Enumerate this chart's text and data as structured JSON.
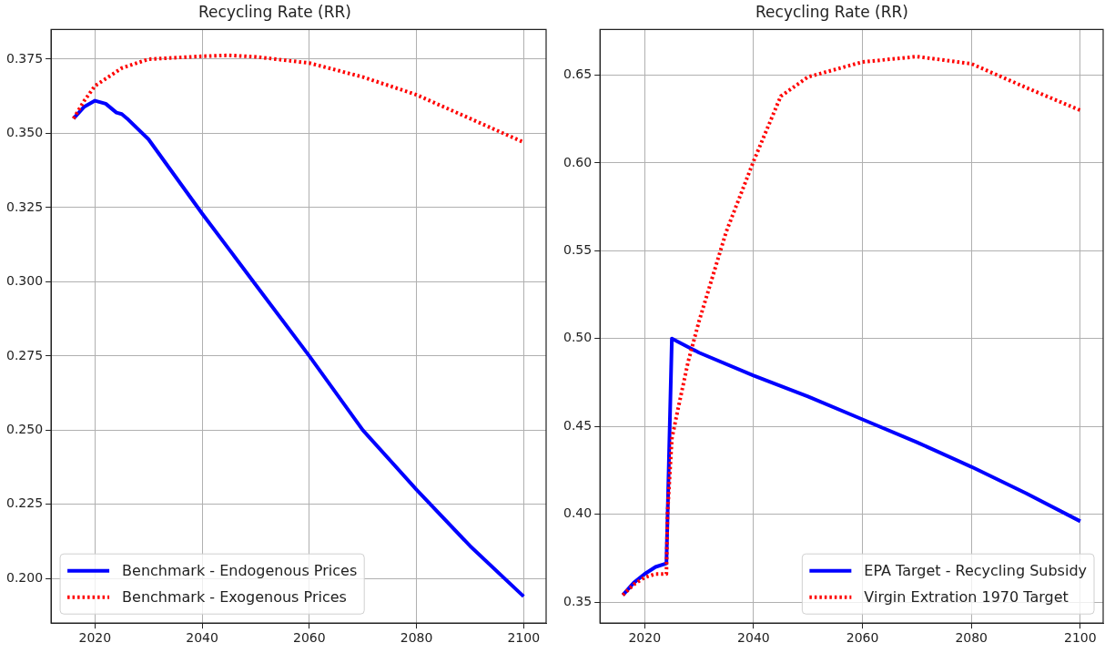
{
  "chart_data": [
    {
      "type": "line",
      "title": "Recycling Rate (RR)",
      "xlim": [
        2011.8,
        2104.2
      ],
      "xticks": [
        2020,
        2040,
        2060,
        2080,
        2100
      ],
      "ylim": [
        0.185,
        0.385
      ],
      "yticks": [
        {
          "value": 0.2,
          "label": "0.200"
        },
        {
          "value": 0.225,
          "label": "0.225"
        },
        {
          "value": 0.25,
          "label": "0.250"
        },
        {
          "value": 0.275,
          "label": "0.275"
        },
        {
          "value": 0.3,
          "label": "0.300"
        },
        {
          "value": 0.325,
          "label": "0.325"
        },
        {
          "value": 0.35,
          "label": "0.350"
        },
        {
          "value": 0.375,
          "label": "0.375"
        }
      ],
      "grid": true,
      "legend": "bottom left",
      "marker": "none",
      "series": [
        {
          "name": "Benchmark - Endogenous Prices",
          "color": "#0000ff",
          "line_style": "solid",
          "x": [
            2016,
            2018,
            2020,
            2022,
            2024,
            2025,
            2026,
            2030,
            2040,
            2050,
            2060,
            2070,
            2080,
            2090,
            2100
          ],
          "values": [
            0.355,
            0.359,
            0.361,
            0.36,
            0.357,
            0.3565,
            0.355,
            0.348,
            0.323,
            0.299,
            0.275,
            0.25,
            0.23,
            0.211,
            0.194
          ]
        },
        {
          "name": "Benchmark - Exogenous Prices",
          "color": "#ff0000",
          "line_style": "dotted",
          "x": [
            2016,
            2018,
            2020,
            2025,
            2030,
            2040,
            2045,
            2050,
            2060,
            2070,
            2080,
            2090,
            2100
          ],
          "values": [
            0.355,
            0.361,
            0.366,
            0.372,
            0.375,
            0.376,
            0.3763,
            0.3758,
            0.3737,
            0.369,
            0.363,
            0.355,
            0.347
          ]
        }
      ]
    },
    {
      "type": "line",
      "title": "Recycling Rate (RR)",
      "xlim": [
        2011.8,
        2104.2
      ],
      "xticks": [
        2020,
        2040,
        2060,
        2080,
        2100
      ],
      "ylim": [
        0.338,
        0.676
      ],
      "yticks": [
        0.35,
        {
          "value": 0.4,
          "label": "0.40"
        },
        0.45,
        {
          "value": 0.5,
          "label": "0.50"
        },
        0.55,
        {
          "value": 0.6,
          "label": "0.60"
        },
        0.65
      ],
      "grid": true,
      "legend": "bottom right",
      "marker": "none",
      "series": [
        {
          "name": "EPA Target - Recycling Subsidy",
          "color": "#0000ff",
          "line_style": "solid",
          "x": [
            2016,
            2018,
            2020,
            2022,
            2024,
            2025,
            2030,
            2040,
            2050,
            2060,
            2070,
            2080,
            2090,
            2100
          ],
          "values": [
            0.354,
            0.361,
            0.366,
            0.37,
            0.372,
            0.5,
            0.492,
            0.479,
            0.467,
            0.454,
            0.441,
            0.427,
            0.412,
            0.396
          ]
        },
        {
          "name": "Virgin Extration 1970 Target",
          "color": "#ff0000",
          "line_style": "dotted",
          "x": [
            2016,
            2018,
            2020,
            2022,
            2024,
            2024.2,
            2025,
            2026,
            2028,
            2030,
            2035,
            2040,
            2045,
            2050,
            2060,
            2070,
            2080,
            2090,
            2100
          ],
          "values": [
            0.354,
            0.36,
            0.364,
            0.366,
            0.366,
            0.4,
            0.443,
            0.458,
            0.487,
            0.51,
            0.561,
            0.601,
            0.638,
            0.649,
            0.6575,
            0.6606,
            0.6565,
            0.643,
            0.63
          ]
        }
      ]
    }
  ]
}
